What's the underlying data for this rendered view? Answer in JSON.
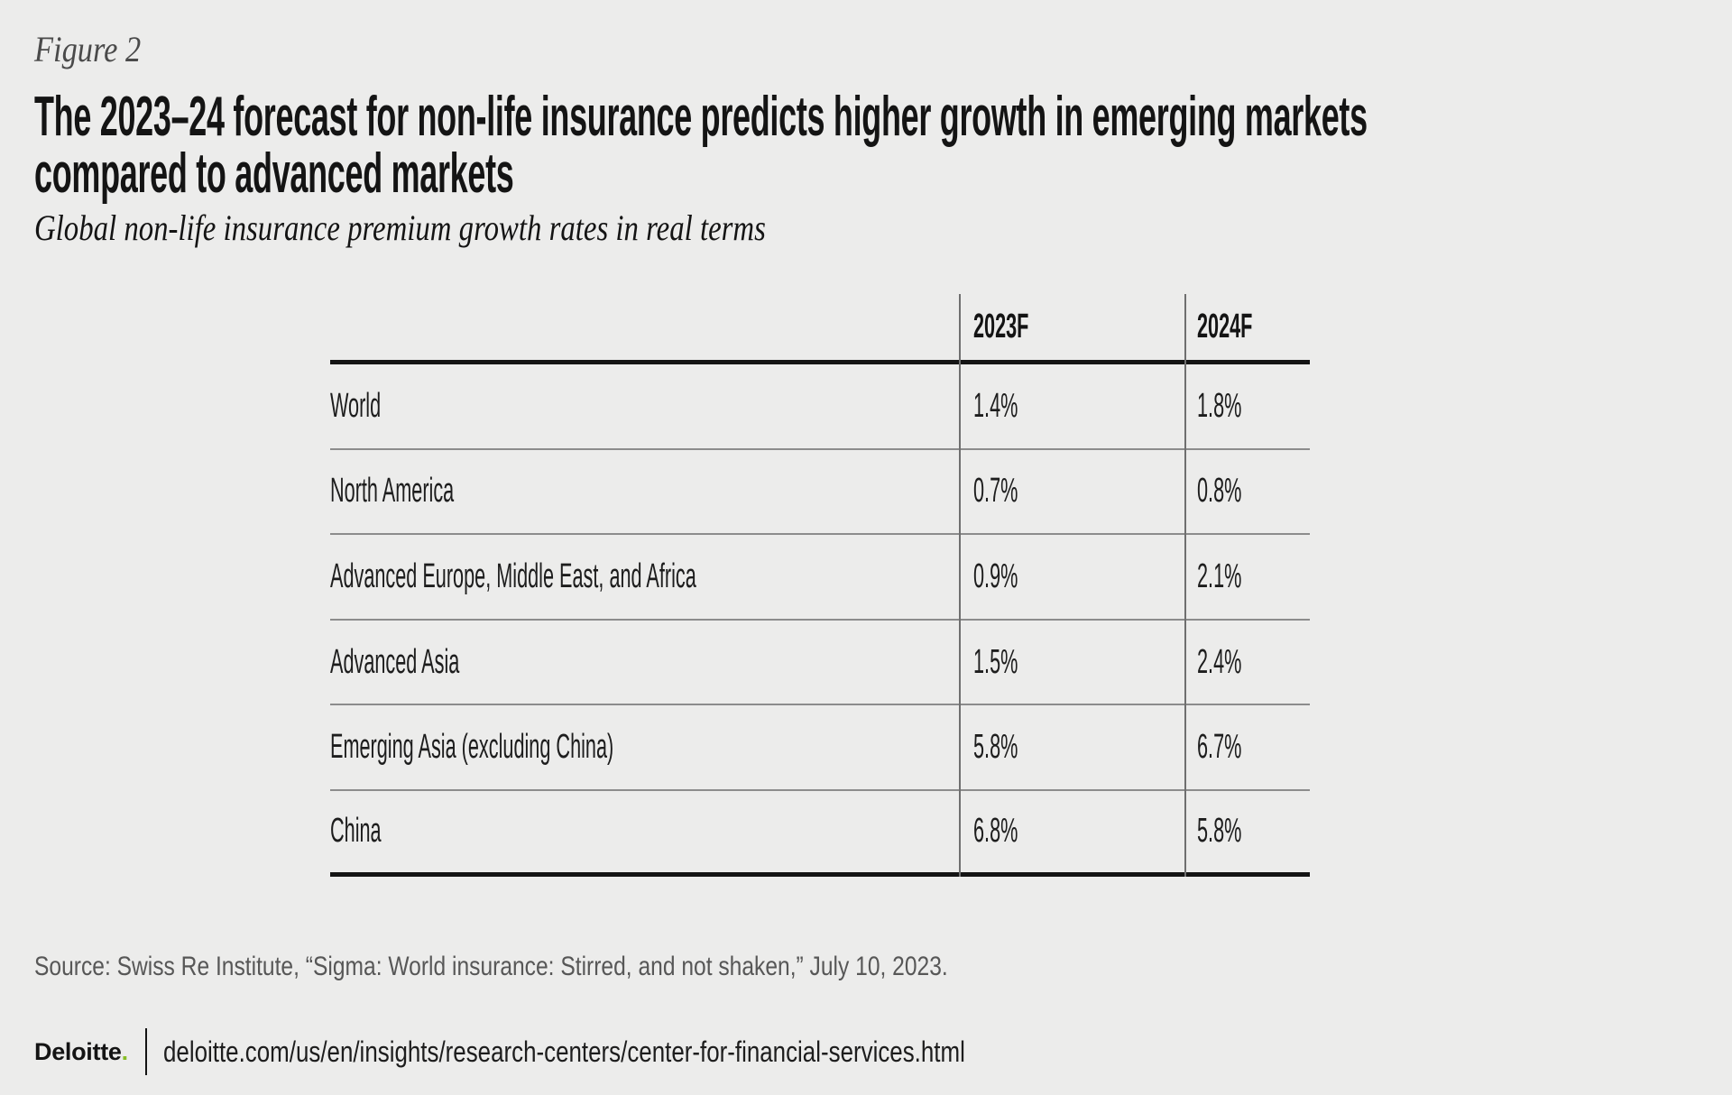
{
  "figure_label": "Figure 2",
  "title_lines": [
    "The 2023–24 forecast for non-life insurance predicts higher growth in emerging markets",
    "compared to advanced markets"
  ],
  "subtitle": "Global non-life insurance premium growth rates in real terms",
  "table": {
    "columns": [
      "2023F",
      "2024F"
    ],
    "rows": [
      {
        "region": "World",
        "y2023": "1.4%",
        "y2024": "1.8%"
      },
      {
        "region": "North America",
        "y2023": "0.7%",
        "y2024": "0.8%"
      },
      {
        "region": "Advanced Europe, Middle East, and Africa",
        "y2023": "0.9%",
        "y2024": "2.1%"
      },
      {
        "region": "Advanced Asia",
        "y2023": "1.5%",
        "y2024": "2.4%"
      },
      {
        "region": "Emerging Asia (excluding China)",
        "y2023": "5.8%",
        "y2024": "6.7%"
      },
      {
        "region": "China",
        "y2023": "6.8%",
        "y2024": "5.8%"
      }
    ]
  },
  "source": "Source: Swiss Re Institute, “Sigma: World insurance: Stirred, and not shaken,” July 10, 2023.",
  "footer": {
    "brand": "Deloitte",
    "brand_dot": ".",
    "url": "deloitte.com/us/en/insights/research-centers/center-for-financial-services.html"
  },
  "colors": {
    "background": "#ececeb",
    "ink": "#141414",
    "text": "#1d1d1d",
    "muted": "#575757",
    "fig_label": "#4a4a4a",
    "rule_heavy": "#141414",
    "rule_light": "#8c8c8c",
    "rule_vertical": "#6f6f6f",
    "brand_green": "#86bc25"
  },
  "chart_data": {
    "type": "table",
    "title": "The 2023–24 forecast for non-life insurance predicts higher growth in emerging markets compared to advanced markets",
    "subtitle": "Global non-life insurance premium growth rates in real terms",
    "unit": "%",
    "categories": [
      "World",
      "North America",
      "Advanced Europe, Middle East, and Africa",
      "Advanced Asia",
      "Emerging Asia (excluding China)",
      "China"
    ],
    "series": [
      {
        "name": "2023F",
        "values": [
          1.4,
          0.7,
          0.9,
          1.5,
          5.8,
          6.8
        ]
      },
      {
        "name": "2024F",
        "values": [
          1.8,
          0.8,
          2.1,
          2.4,
          6.7,
          5.8
        ]
      }
    ],
    "source": "Swiss Re Institute, “Sigma: World insurance: Stirred, and not shaken,” July 10, 2023"
  }
}
